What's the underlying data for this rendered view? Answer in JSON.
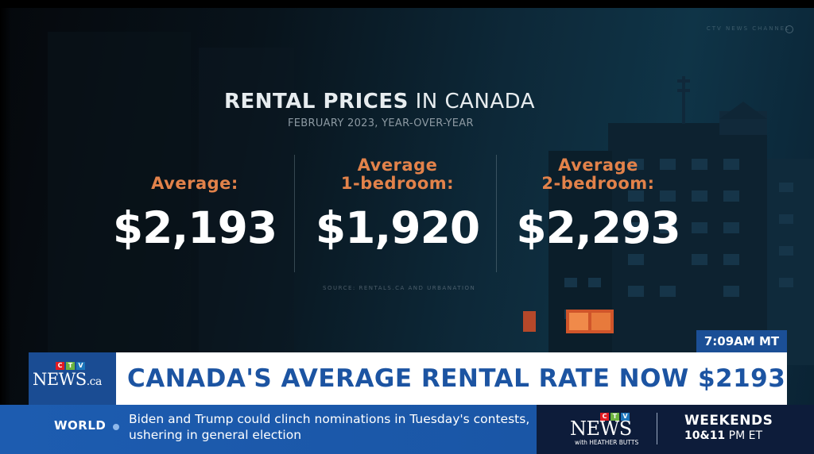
{
  "graphic": {
    "watermark": "CTV NEWS CHANNEL",
    "title_bold": "RENTAL PRICES",
    "title_rest": " IN CANADA",
    "subtitle": "FEBRUARY 2023, YEAR-OVER-YEAR",
    "columns": [
      {
        "label_line1": "",
        "label_line2": "Average:",
        "value": "$2,193"
      },
      {
        "label_line1": "Average",
        "label_line2": "1-bedroom:",
        "value": "$1,920"
      },
      {
        "label_line1": "Average",
        "label_line2": "2-bedroom:",
        "value": "$2,293"
      }
    ],
    "source": "SOURCE: RENTALS.CA AND URBANATION"
  },
  "lower_third": {
    "time": "7:09AM MT",
    "logo_ctv": [
      "C",
      "T",
      "V"
    ],
    "logo_news": "NEWS",
    "logo_suffix": ".ca",
    "headline": "CANADA'S AVERAGE RENTAL RATE NOW $2193"
  },
  "ticker": {
    "category": "WORLD",
    "text": "Biden and Trump could clinch nominations in Tuesday's contests, ushering in general election"
  },
  "promo": {
    "logo_ctv": [
      "C",
      "T",
      "V"
    ],
    "logo_news": "NEWS",
    "logo_with": "with HEATHER BUTTS",
    "line1": "WEEKENDS",
    "line2_days": "10&11",
    "line2_time": " PM ET"
  },
  "colors": {
    "ctv_red": "#e11b22",
    "ctv_green": "#6cb33f",
    "ctv_blue": "#1b75bb",
    "accent_orange": "#e2824a",
    "headline_blue": "#1c54a2"
  }
}
